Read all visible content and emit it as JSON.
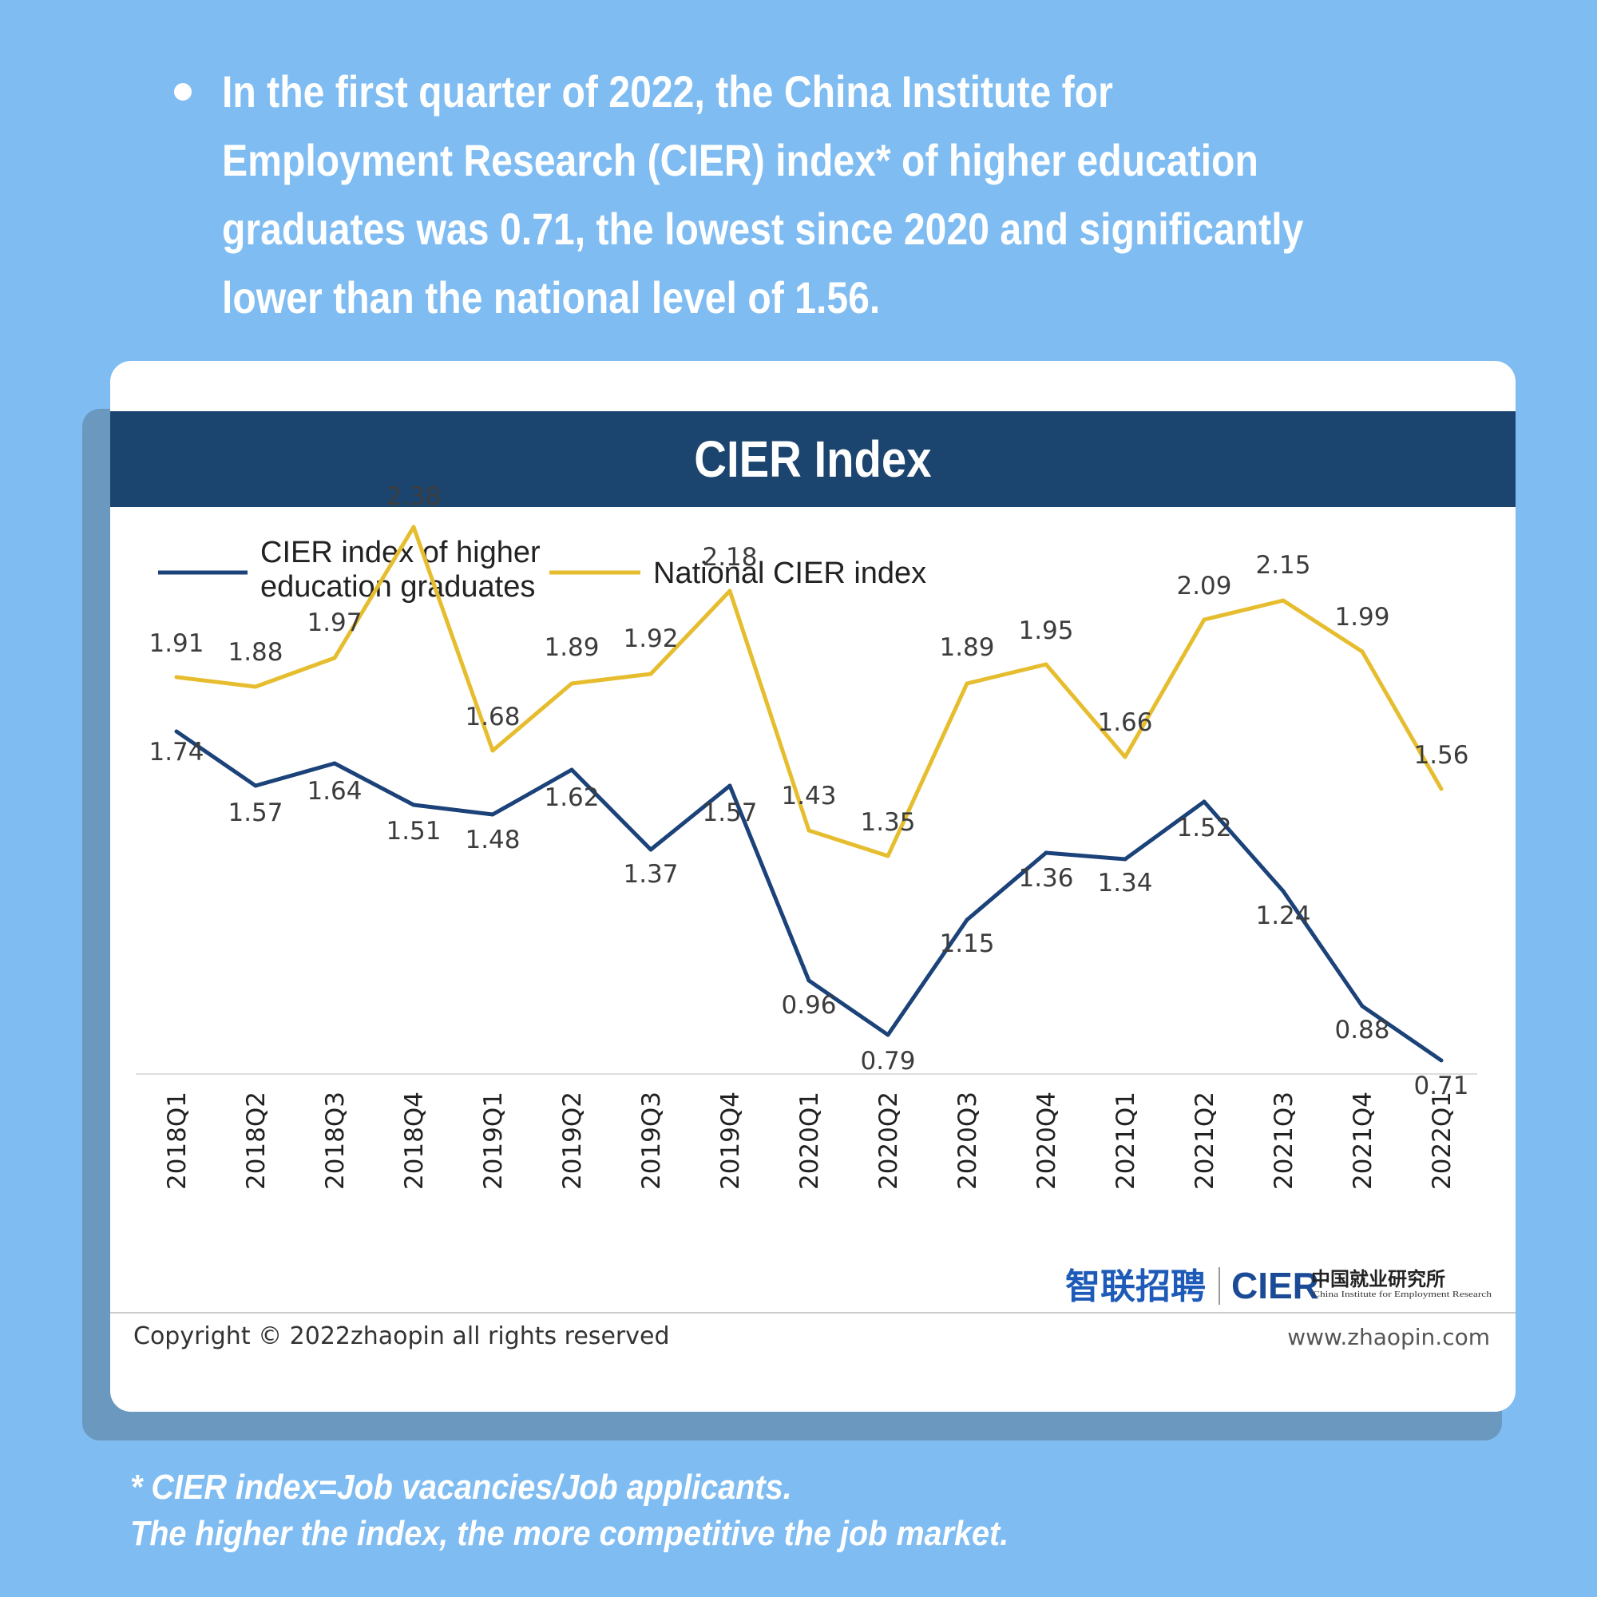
{
  "intro": {
    "text": "In the first quarter of 2022, the China Institute for Employment Research (CIER) index* of higher education graduates was 0.71, the lowest since 2020 and significantly lower than the national level of 1.56."
  },
  "card": {
    "title": "CIER Index",
    "copyright": "Copyright © 2022zhaopin all rights reserved",
    "website": "www.zhaopin.com",
    "logo_zhaopin": "智联招聘",
    "logo_cier": "CIER",
    "logo_cier_cn": "中国就业研究所",
    "logo_cier_en": "China Institute for Employment Research"
  },
  "colors": {
    "background": "#7fbcf2",
    "header": "#1b456f",
    "graduates_line": "#1b4279",
    "national_line": "#e6bd2e"
  },
  "chart_data": {
    "type": "line",
    "title": "CIER Index",
    "xlabel": "",
    "ylabel": "",
    "categories": [
      "2018Q1",
      "2018Q2",
      "2018Q3",
      "2018Q4",
      "2019Q1",
      "2019Q2",
      "2019Q3",
      "2019Q4",
      "2020Q1",
      "2020Q2",
      "2020Q3",
      "2020Q4",
      "2021Q1",
      "2021Q2",
      "2021Q3",
      "2021Q4",
      "2022Q1"
    ],
    "series": [
      {
        "name": "CIER index of higher education graduates",
        "legend_lines": [
          "CIER index of higher",
          "education graduates"
        ],
        "values": [
          1.74,
          1.57,
          1.64,
          1.51,
          1.48,
          1.62,
          1.37,
          1.57,
          0.96,
          0.79,
          1.15,
          1.36,
          1.34,
          1.52,
          1.24,
          0.88,
          0.71
        ],
        "labels": [
          "1.74",
          "1.57",
          "1.64",
          "1.51",
          "1.48",
          "1.62",
          "1.37",
          "1.57",
          "0.96",
          "0.79",
          "1.15",
          "1.36",
          "1.34",
          "1.52",
          "1.24",
          "0.88",
          "0.71"
        ]
      },
      {
        "name": "National CIER index",
        "legend_lines": [
          "National CIER index"
        ],
        "values": [
          1.91,
          1.88,
          1.97,
          2.38,
          1.68,
          1.89,
          1.92,
          2.18,
          1.43,
          1.35,
          1.89,
          1.95,
          1.66,
          2.09,
          2.15,
          1.99,
          1.56
        ],
        "labels": [
          "1.91",
          "1.88",
          "1.97",
          "2.38",
          "1.68",
          "1.89",
          "1.92",
          "2.18",
          "1.43",
          "1.35",
          "1.89",
          "1.95",
          "1.66",
          "2.09",
          "2.15",
          "1.99",
          "1.56"
        ]
      }
    ],
    "ylim": [
      0,
      2.6
    ],
    "grid": false,
    "legend": "top-left"
  },
  "footnote": {
    "line1": "* CIER index=Job vacancies/Job applicants.",
    "line2": "The higher the index, the more competitive the job market."
  }
}
